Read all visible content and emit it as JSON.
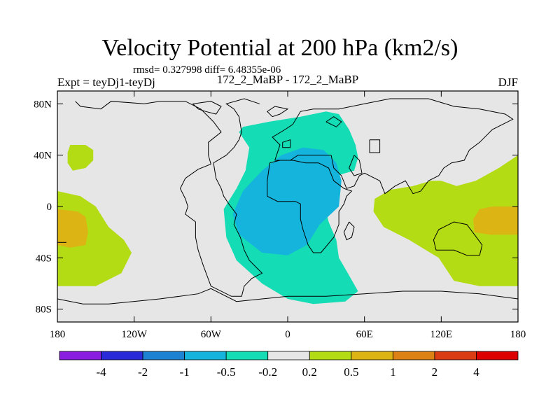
{
  "chart_data": {
    "type": "heatmap",
    "title": "Velocity Potential at 200 hPa (km2/s)",
    "stats": "rmsd= 0.327998  diff= 6.48355e-06",
    "left_label": "Expt = teyDj1-teyDj",
    "center_label": "172_2_MaBP - 172_2_MaBP",
    "right_label": "DJF",
    "x_ticks": [
      {
        "value": -180,
        "label": "180"
      },
      {
        "value": -120,
        "label": "120W"
      },
      {
        "value": -60,
        "label": "60W"
      },
      {
        "value": 0,
        "label": "0"
      },
      {
        "value": 60,
        "label": "60E"
      },
      {
        "value": 120,
        "label": "120E"
      },
      {
        "value": 180,
        "label": "180"
      }
    ],
    "y_ticks": [
      {
        "value": 80,
        "label": "80N"
      },
      {
        "value": 40,
        "label": "40N"
      },
      {
        "value": 0,
        "label": "0"
      },
      {
        "value": -40,
        "label": "40S"
      },
      {
        "value": -80,
        "label": "80S"
      }
    ],
    "xlim": [
      -180,
      180
    ],
    "ylim": [
      -90,
      90
    ],
    "colorbar": {
      "levels": [
        "-4",
        "-2",
        "-1",
        "-0.5",
        "-0.2",
        "0.2",
        "0.5",
        "1",
        "2",
        "4"
      ],
      "colors": [
        "#8a1ee0",
        "#2a2ad8",
        "#1e82d2",
        "#14b4dc",
        "#14dcb4",
        "#e6e6e6",
        "#b4dc14",
        "#dcb414",
        "#dc8214",
        "#dc3c14",
        "#dc0000"
      ]
    },
    "regions": [
      {
        "name": "positive-0.2-0.5-north-pacific",
        "color": "#b4dc14",
        "points": [
          [
            -170,
            48
          ],
          [
            -158,
            48
          ],
          [
            -152,
            44
          ],
          [
            -152,
            36
          ],
          [
            -158,
            30
          ],
          [
            -168,
            28
          ],
          [
            -172,
            34
          ],
          [
            -172,
            42
          ]
        ]
      },
      {
        "name": "positive-0.2-0.5-west-pacific",
        "color": "#b4dc14",
        "points": [
          [
            -180,
            12
          ],
          [
            -162,
            8
          ],
          [
            -150,
            0
          ],
          [
            -140,
            -16
          ],
          [
            -128,
            -26
          ],
          [
            -122,
            -36
          ],
          [
            -130,
            -52
          ],
          [
            -150,
            -62
          ],
          [
            -180,
            -62
          ]
        ]
      },
      {
        "name": "positive-0.5-1-west-pacific",
        "color": "#dcb414",
        "points": [
          [
            -180,
            -2
          ],
          [
            -164,
            -4
          ],
          [
            -158,
            -8
          ],
          [
            -156,
            -20
          ],
          [
            -158,
            -30
          ],
          [
            -170,
            -32
          ],
          [
            -180,
            -30
          ]
        ]
      },
      {
        "name": "positive-0.2-0.5-east",
        "color": "#b4dc14",
        "points": [
          [
            180,
            40
          ],
          [
            165,
            30
          ],
          [
            147,
            20
          ],
          [
            132,
            16
          ],
          [
            120,
            20
          ],
          [
            112,
            20
          ],
          [
            98,
            16
          ],
          [
            80,
            13
          ],
          [
            68,
            6
          ],
          [
            67,
            -4
          ],
          [
            75,
            -16
          ],
          [
            95,
            -26
          ],
          [
            108,
            -34
          ],
          [
            118,
            -40
          ],
          [
            130,
            -58
          ],
          [
            150,
            -62
          ],
          [
            180,
            -62
          ]
        ]
      },
      {
        "name": "positive-0.5-1-east",
        "color": "#dcb414",
        "points": [
          [
            180,
            0
          ],
          [
            160,
            0
          ],
          [
            150,
            -2
          ],
          [
            145,
            -10
          ],
          [
            146,
            -20
          ],
          [
            158,
            -22
          ],
          [
            180,
            -22
          ]
        ]
      },
      {
        "name": "negative-0.2-0.5",
        "color": "#14dcb4",
        "points": [
          [
            -35,
            62
          ],
          [
            -15,
            66
          ],
          [
            10,
            70
          ],
          [
            30,
            74
          ],
          [
            40,
            72
          ],
          [
            48,
            60
          ],
          [
            53,
            48
          ],
          [
            55,
            38
          ],
          [
            52,
            28
          ],
          [
            38,
            24
          ],
          [
            33,
            14
          ],
          [
            30,
            -4
          ],
          [
            32,
            -12
          ],
          [
            38,
            -26
          ],
          [
            40,
            -40
          ],
          [
            47,
            -52
          ],
          [
            55,
            -66
          ],
          [
            45,
            -74
          ],
          [
            20,
            -76
          ],
          [
            0,
            -72
          ],
          [
            -20,
            -60
          ],
          [
            -40,
            -42
          ],
          [
            -48,
            -24
          ],
          [
            -50,
            -2
          ],
          [
            -40,
            14
          ],
          [
            -33,
            28
          ],
          [
            -30,
            46
          ],
          [
            -38,
            58
          ]
        ]
      },
      {
        "name": "negative-0.5-1",
        "color": "#14b4dc",
        "points": [
          [
            -5,
            40
          ],
          [
            12,
            46
          ],
          [
            28,
            44
          ],
          [
            38,
            34
          ],
          [
            42,
            20
          ],
          [
            40,
            0
          ],
          [
            25,
            -14
          ],
          [
            15,
            -30
          ],
          [
            0,
            -38
          ],
          [
            -20,
            -36
          ],
          [
            -38,
            -22
          ],
          [
            -43,
            -6
          ],
          [
            -35,
            12
          ],
          [
            -20,
            28
          ]
        ]
      }
    ],
    "coastlines": [
      [
        [
          -173,
          -28
        ],
        [
          -180,
          -28
        ]
      ],
      [
        [
          -166,
          82
        ],
        [
          -162,
          78
        ],
        [
          -146,
          76
        ],
        [
          -138,
          82
        ],
        [
          -112,
          80
        ],
        [
          -100,
          82
        ],
        [
          -80,
          82
        ],
        [
          -68,
          76
        ],
        [
          -58,
          66
        ],
        [
          -52,
          58
        ],
        [
          -62,
          50
        ],
        [
          -62,
          40
        ],
        [
          -60,
          33
        ],
        [
          -70,
          29
        ],
        [
          -80,
          22
        ],
        [
          -84,
          14
        ],
        [
          -80,
          6
        ],
        [
          -78,
          0
        ],
        [
          -80,
          -6
        ],
        [
          -72,
          -12
        ],
        [
          -72,
          -24
        ],
        [
          -70,
          -34
        ],
        [
          -66,
          -46
        ],
        [
          -60,
          -62
        ],
        [
          -44,
          -70
        ],
        [
          -36,
          -70
        ],
        [
          -34,
          -62
        ],
        [
          -28,
          -56
        ],
        [
          -20,
          -52
        ],
        [
          -30,
          -42
        ],
        [
          -34,
          -34
        ],
        [
          -37,
          -24
        ],
        [
          -42,
          -14
        ],
        [
          -40,
          -6
        ],
        [
          -46,
          2
        ],
        [
          -50,
          8
        ],
        [
          -52,
          14
        ],
        [
          -56,
          22
        ],
        [
          -58,
          34
        ],
        [
          -48,
          40
        ],
        [
          -42,
          46
        ],
        [
          -38,
          52
        ],
        [
          -36,
          58
        ],
        [
          -38,
          70
        ],
        [
          -42,
          76
        ],
        [
          -48,
          80
        ],
        [
          -34,
          84
        ],
        [
          -22,
          80
        ]
      ],
      [
        [
          -64,
          74
        ],
        [
          -70,
          76
        ],
        [
          -74,
          80
        ],
        [
          -60,
          82
        ],
        [
          -52,
          78
        ],
        [
          -56,
          72
        ],
        [
          -64,
          74
        ]
      ],
      [
        [
          -12,
          70
        ],
        [
          -6,
          72
        ],
        [
          0,
          76
        ],
        [
          -10,
          78
        ],
        [
          -16,
          74
        ],
        [
          -12,
          70
        ]
      ],
      [
        [
          -10,
          36
        ],
        [
          -6,
          48
        ],
        [
          -12,
          54
        ],
        [
          -2,
          60
        ],
        [
          4,
          64
        ],
        [
          10,
          74
        ],
        [
          20,
          76
        ],
        [
          40,
          76
        ],
        [
          60,
          80
        ],
        [
          80,
          84
        ],
        [
          110,
          84
        ],
        [
          130,
          78
        ],
        [
          150,
          76
        ],
        [
          170,
          72
        ],
        [
          176,
          68
        ],
        [
          160,
          60
        ],
        [
          150,
          50
        ],
        [
          142,
          44
        ],
        [
          138,
          36
        ],
        [
          128,
          34
        ],
        [
          122,
          30
        ],
        [
          118,
          24
        ],
        [
          110,
          20
        ],
        [
          104,
          12
        ],
        [
          98,
          10
        ],
        [
          92,
          20
        ],
        [
          84,
          16
        ],
        [
          76,
          10
        ],
        [
          72,
          20
        ],
        [
          60,
          26
        ],
        [
          56,
          24
        ],
        [
          52,
          16
        ],
        [
          46,
          14
        ],
        [
          42,
          24
        ],
        [
          36,
          30
        ],
        [
          34,
          40
        ],
        [
          26,
          40
        ],
        [
          16,
          40
        ],
        [
          8,
          40
        ],
        [
          2,
          36
        ],
        [
          -6,
          36
        ],
        [
          -10,
          36
        ]
      ],
      [
        [
          -14,
          34
        ],
        [
          -16,
          20
        ],
        [
          -16,
          8
        ],
        [
          -8,
          4
        ],
        [
          6,
          4
        ],
        [
          10,
          2
        ],
        [
          10,
          -10
        ],
        [
          12,
          -18
        ],
        [
          16,
          -30
        ],
        [
          20,
          -36
        ],
        [
          26,
          -36
        ],
        [
          36,
          -24
        ],
        [
          40,
          -14
        ],
        [
          40,
          -4
        ],
        [
          44,
          2
        ],
        [
          46,
          8
        ],
        [
          50,
          12
        ],
        [
          44,
          14
        ],
        [
          36,
          20
        ],
        [
          32,
          30
        ],
        [
          24,
          34
        ],
        [
          14,
          34
        ],
        [
          4,
          36
        ],
        [
          -6,
          36
        ],
        [
          -14,
          34
        ]
      ],
      [
        [
          48,
          -12
        ],
        [
          52,
          -16
        ],
        [
          50,
          -24
        ],
        [
          46,
          -26
        ],
        [
          44,
          -20
        ],
        [
          48,
          -12
        ]
      ],
      [
        [
          118,
          -18
        ],
        [
          130,
          -12
        ],
        [
          140,
          -14
        ],
        [
          146,
          -22
        ],
        [
          152,
          -30
        ],
        [
          150,
          -38
        ],
        [
          140,
          -38
        ],
        [
          130,
          -34
        ],
        [
          116,
          -34
        ],
        [
          114,
          -26
        ],
        [
          118,
          -18
        ]
      ],
      [
        [
          64,
          52
        ],
        [
          72,
          52
        ],
        [
          72,
          42
        ],
        [
          64,
          42
        ],
        [
          64,
          52
        ]
      ],
      [
        [
          52,
          40
        ],
        [
          56,
          36
        ],
        [
          58,
          26
        ],
        [
          52,
          24
        ],
        [
          48,
          30
        ],
        [
          52,
          40
        ]
      ],
      [
        [
          -4,
          50
        ],
        [
          2,
          52
        ],
        [
          2,
          46
        ],
        [
          -4,
          46
        ],
        [
          -4,
          50
        ]
      ],
      [
        [
          30,
          66
        ],
        [
          36,
          70
        ],
        [
          42,
          66
        ],
        [
          38,
          62
        ],
        [
          30,
          66
        ]
      ],
      [
        [
          -180,
          -72
        ],
        [
          -160,
          -76
        ],
        [
          -140,
          -76
        ],
        [
          -100,
          -72
        ],
        [
          -70,
          -68
        ],
        [
          -60,
          -64
        ],
        [
          -40,
          -74
        ],
        [
          -20,
          -72
        ],
        [
          0,
          -70
        ],
        [
          30,
          -70
        ],
        [
          60,
          -68
        ],
        [
          90,
          -66
        ],
        [
          120,
          -66
        ],
        [
          150,
          -68
        ],
        [
          180,
          -72
        ]
      ]
    ]
  }
}
